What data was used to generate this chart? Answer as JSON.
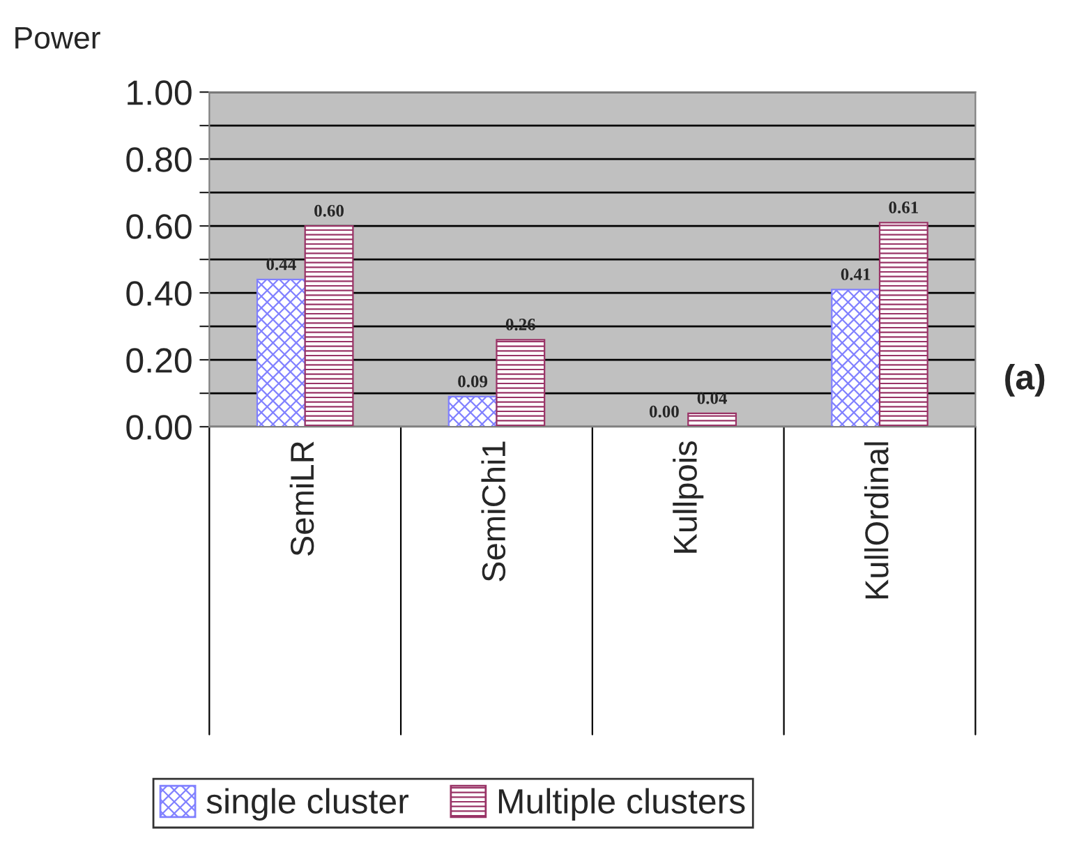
{
  "chart_data": {
    "type": "bar",
    "ylabel": "Power",
    "categories": [
      "SemiLR",
      "SemiChi1",
      "Kullpois",
      "KullOrdinal"
    ],
    "series": [
      {
        "name": "single cluster",
        "color": "#8080ff",
        "values": [
          0.44,
          0.09,
          0.0,
          0.41
        ],
        "value_labels": [
          "0.44",
          "0.09",
          "0.00",
          "0.41"
        ]
      },
      {
        "name": "Multiple clusters",
        "color": "#993366",
        "values": [
          0.6,
          0.26,
          0.04,
          0.61
        ],
        "value_labels": [
          "0.60",
          "0.26",
          "0.04",
          "0.61"
        ]
      }
    ],
    "ylim": [
      0,
      1
    ],
    "yticks": [
      {
        "value": 0,
        "label": "0.00"
      },
      {
        "value": 0.1,
        "label": null
      },
      {
        "value": 0.2,
        "label": "0.20"
      },
      {
        "value": 0.3,
        "label": null
      },
      {
        "value": 0.4,
        "label": "0.40"
      },
      {
        "value": 0.5,
        "label": null
      },
      {
        "value": 0.6,
        "label": "0.60"
      },
      {
        "value": 0.7,
        "label": null
      },
      {
        "value": 0.8,
        "label": "0.80"
      },
      {
        "value": 0.9,
        "label": null
      },
      {
        "value": 1,
        "label": "1.00"
      }
    ],
    "grid": "y",
    "legend": "bottom",
    "annotations": [
      "(a)"
    ]
  }
}
